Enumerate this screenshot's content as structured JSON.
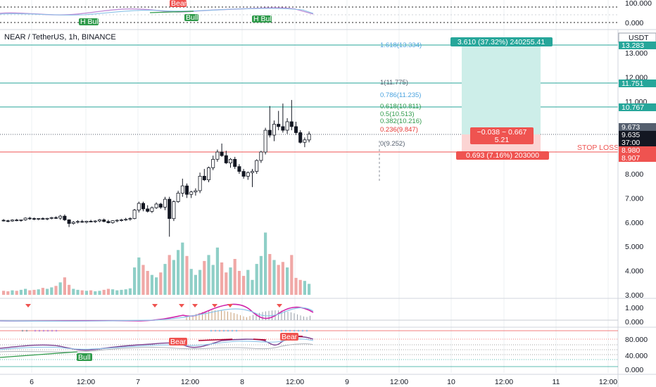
{
  "header": {
    "symbol_line": "NEAR / TetherUS, 1h, BINANCE"
  },
  "colors": {
    "up": "#26a69a",
    "down": "#ef5350",
    "up_vol": "#8fcfc7",
    "down_vol": "#f0a8a6",
    "fib_blue": "#4aa3df",
    "fib_green": "#2e9a4a",
    "fib_red": "#e53935",
    "target_fill": "#cdeee9",
    "stop_fill": "#fbd4d3"
  },
  "price_axis": {
    "currency": "USDT",
    "ticks": [
      "13.000",
      "12.000",
      "11.000",
      "10.000",
      "9.000",
      "8.000",
      "7.000",
      "6.000",
      "5.000",
      "4.000",
      "3.000"
    ],
    "tags": [
      {
        "label": "13.283",
        "color": "#26a69a"
      },
      {
        "label": "11.751",
        "color": "#26a69a"
      },
      {
        "label": "10.767",
        "color": "#26a69a"
      },
      {
        "label": "9.673",
        "color": "#555f6e"
      },
      {
        "label": "9.635",
        "color": "#131722"
      },
      {
        "label": "37:00",
        "color": "#131722"
      },
      {
        "label": "8.980",
        "color": "#ef5350"
      },
      {
        "label": "8.907",
        "color": "#ef5350"
      }
    ]
  },
  "top_panel": {
    "ticks": [
      "100.000",
      "0.000"
    ],
    "badges": [
      "Bear",
      "Bull",
      "H Bull",
      "H Bull"
    ]
  },
  "macd_panel": {
    "ticks": [
      "1.000",
      "0.000"
    ]
  },
  "rsi_panel": {
    "ticks": [
      "80.000",
      "40.000",
      "0.000"
    ],
    "badges": [
      "Bear",
      "Bear",
      "Bull"
    ]
  },
  "time_axis": {
    "labels": [
      "6",
      "12:00",
      "7",
      "12:00",
      "8",
      "12:00",
      "9",
      "12:00",
      "10",
      "12:00",
      "11",
      "12:00"
    ]
  },
  "fib_levels": [
    {
      "label": "1.618(13.334)",
      "color": "#4aa3df"
    },
    {
      "label": "1(11.775)",
      "color": "#555f6e"
    },
    {
      "label": "0.786(11.235)",
      "color": "#4aa3df"
    },
    {
      "label": "0.618(10.811)",
      "color": "#2e9a4a"
    },
    {
      "label": "0.5(10.513)",
      "color": "#2e9a4a"
    },
    {
      "label": "0.382(10.216)",
      "color": "#2e9a4a"
    },
    {
      "label": "0.236(9.847)",
      "color": "#e53935"
    },
    {
      "label": "0(9.252)",
      "color": "#555f6e"
    }
  ],
  "position": {
    "target_label": "3.610 (37.32%) 240255.41",
    "rr_line1": "−0.038 ~ 0.667",
    "rr_line2": "5.21",
    "stop_label": "0.693 (7.16%) 203000",
    "stop_text": "STOP LOSS"
  },
  "chart_data": {
    "type": "candlestick",
    "candles": [
      {
        "o": 6.08,
        "h": 6.13,
        "l": 6.03,
        "c": 6.07
      },
      {
        "o": 6.06,
        "h": 6.1,
        "l": 6.0,
        "c": 6.05
      },
      {
        "o": 6.05,
        "h": 6.12,
        "l": 6.02,
        "c": 6.09
      },
      {
        "o": 6.09,
        "h": 6.14,
        "l": 6.04,
        "c": 6.06
      },
      {
        "o": 6.07,
        "h": 6.11,
        "l": 6.02,
        "c": 6.1
      },
      {
        "o": 6.1,
        "h": 6.2,
        "l": 6.06,
        "c": 6.17
      },
      {
        "o": 6.17,
        "h": 6.22,
        "l": 6.1,
        "c": 6.15
      },
      {
        "o": 6.15,
        "h": 6.19,
        "l": 6.09,
        "c": 6.12
      },
      {
        "o": 6.12,
        "h": 6.17,
        "l": 6.08,
        "c": 6.15
      },
      {
        "o": 6.15,
        "h": 6.2,
        "l": 6.1,
        "c": 6.13
      },
      {
        "o": 6.13,
        "h": 6.18,
        "l": 6.08,
        "c": 6.16
      },
      {
        "o": 6.16,
        "h": 6.22,
        "l": 6.12,
        "c": 6.19
      },
      {
        "o": 6.19,
        "h": 6.24,
        "l": 6.14,
        "c": 6.17
      },
      {
        "o": 6.17,
        "h": 6.3,
        "l": 6.1,
        "c": 6.25
      },
      {
        "o": 6.25,
        "h": 6.32,
        "l": 6.05,
        "c": 6.1
      },
      {
        "o": 6.1,
        "h": 6.12,
        "l": 5.8,
        "c": 5.95
      },
      {
        "o": 5.95,
        "h": 6.05,
        "l": 5.9,
        "c": 6.0
      },
      {
        "o": 6.0,
        "h": 6.08,
        "l": 5.95,
        "c": 6.03
      },
      {
        "o": 6.03,
        "h": 6.1,
        "l": 5.98,
        "c": 6.0
      },
      {
        "o": 6.0,
        "h": 6.06,
        "l": 5.95,
        "c": 6.04
      },
      {
        "o": 6.04,
        "h": 6.1,
        "l": 6.0,
        "c": 6.02
      },
      {
        "o": 6.02,
        "h": 6.08,
        "l": 5.97,
        "c": 6.05
      },
      {
        "o": 6.05,
        "h": 6.13,
        "l": 6.0,
        "c": 6.1
      },
      {
        "o": 6.1,
        "h": 6.15,
        "l": 6.0,
        "c": 6.03
      },
      {
        "o": 6.03,
        "h": 6.1,
        "l": 5.95,
        "c": 5.98
      },
      {
        "o": 5.98,
        "h": 6.08,
        "l": 5.94,
        "c": 6.06
      },
      {
        "o": 6.06,
        "h": 6.12,
        "l": 6.0,
        "c": 6.08
      },
      {
        "o": 6.08,
        "h": 6.14,
        "l": 6.03,
        "c": 6.1
      },
      {
        "o": 6.1,
        "h": 6.18,
        "l": 6.05,
        "c": 6.12
      },
      {
        "o": 6.12,
        "h": 6.2,
        "l": 6.06,
        "c": 6.15
      },
      {
        "o": 6.15,
        "h": 6.55,
        "l": 6.12,
        "c": 6.5
      },
      {
        "o": 6.5,
        "h": 6.85,
        "l": 6.4,
        "c": 6.78
      },
      {
        "o": 6.78,
        "h": 6.85,
        "l": 6.45,
        "c": 6.55
      },
      {
        "o": 6.55,
        "h": 6.7,
        "l": 6.4,
        "c": 6.45
      },
      {
        "o": 6.45,
        "h": 6.65,
        "l": 6.38,
        "c": 6.6
      },
      {
        "o": 6.6,
        "h": 6.82,
        "l": 6.55,
        "c": 6.75
      },
      {
        "o": 6.75,
        "h": 6.8,
        "l": 6.55,
        "c": 6.62
      },
      {
        "o": 6.62,
        "h": 7.05,
        "l": 6.5,
        "c": 6.95
      },
      {
        "o": 6.95,
        "h": 7.05,
        "l": 5.4,
        "c": 6.15
      },
      {
        "o": 6.15,
        "h": 6.9,
        "l": 6.05,
        "c": 6.85
      },
      {
        "o": 6.85,
        "h": 7.3,
        "l": 6.8,
        "c": 7.2
      },
      {
        "o": 7.2,
        "h": 7.8,
        "l": 7.05,
        "c": 7.5
      },
      {
        "o": 7.5,
        "h": 7.6,
        "l": 7.0,
        "c": 7.15
      },
      {
        "o": 7.15,
        "h": 7.3,
        "l": 7.0,
        "c": 7.25
      },
      {
        "o": 7.25,
        "h": 7.4,
        "l": 7.1,
        "c": 7.3
      },
      {
        "o": 7.3,
        "h": 8.05,
        "l": 7.2,
        "c": 7.9
      },
      {
        "o": 7.9,
        "h": 8.2,
        "l": 7.7,
        "c": 7.75
      },
      {
        "o": 7.75,
        "h": 8.3,
        "l": 7.65,
        "c": 8.25
      },
      {
        "o": 8.25,
        "h": 8.75,
        "l": 8.15,
        "c": 8.6
      },
      {
        "o": 8.6,
        "h": 9.0,
        "l": 8.5,
        "c": 8.9
      },
      {
        "o": 8.9,
        "h": 9.25,
        "l": 8.7,
        "c": 8.75
      },
      {
        "o": 8.75,
        "h": 8.95,
        "l": 8.4,
        "c": 8.45
      },
      {
        "o": 8.45,
        "h": 8.65,
        "l": 8.25,
        "c": 8.6
      },
      {
        "o": 8.6,
        "h": 8.7,
        "l": 8.2,
        "c": 8.3
      },
      {
        "o": 8.3,
        "h": 8.4,
        "l": 8.0,
        "c": 8.1
      },
      {
        "o": 8.1,
        "h": 8.2,
        "l": 7.8,
        "c": 7.9
      },
      {
        "o": 7.9,
        "h": 8.1,
        "l": 7.75,
        "c": 8.05
      },
      {
        "o": 8.05,
        "h": 8.2,
        "l": 7.45,
        "c": 8.1
      },
      {
        "o": 8.1,
        "h": 8.6,
        "l": 8.0,
        "c": 8.55
      },
      {
        "o": 8.55,
        "h": 8.95,
        "l": 8.45,
        "c": 8.9
      },
      {
        "o": 8.9,
        "h": 9.9,
        "l": 8.8,
        "c": 9.8
      },
      {
        "o": 9.8,
        "h": 10.8,
        "l": 9.5,
        "c": 9.6
      },
      {
        "o": 9.6,
        "h": 10.2,
        "l": 9.35,
        "c": 10.05
      },
      {
        "o": 10.05,
        "h": 10.6,
        "l": 9.8,
        "c": 9.95
      },
      {
        "o": 9.95,
        "h": 10.9,
        "l": 9.7,
        "c": 9.8
      },
      {
        "o": 9.8,
        "h": 10.3,
        "l": 9.65,
        "c": 10.15
      },
      {
        "o": 10.15,
        "h": 11.05,
        "l": 9.8,
        "c": 9.95
      },
      {
        "o": 9.95,
        "h": 10.15,
        "l": 9.6,
        "c": 9.7
      },
      {
        "o": 9.7,
        "h": 9.8,
        "l": 9.25,
        "c": 9.3
      },
      {
        "o": 9.3,
        "h": 9.5,
        "l": 9.1,
        "c": 9.4
      },
      {
        "o": 9.4,
        "h": 9.75,
        "l": 9.3,
        "c": 9.64
      }
    ],
    "volume": [
      0.08,
      0.07,
      0.09,
      0.08,
      0.1,
      0.12,
      0.09,
      0.1,
      0.11,
      0.14,
      0.12,
      0.15,
      0.18,
      0.25,
      0.35,
      0.2,
      0.12,
      0.1,
      0.09,
      0.08,
      0.09,
      0.07,
      0.08,
      0.1,
      0.12,
      0.11,
      0.09,
      0.1,
      0.11,
      0.13,
      0.55,
      0.75,
      0.6,
      0.48,
      0.4,
      0.35,
      0.45,
      0.62,
      0.8,
      0.7,
      0.9,
      1.05,
      0.78,
      0.52,
      0.4,
      0.5,
      0.68,
      0.8,
      0.6,
      0.95,
      0.65,
      0.45,
      0.55,
      0.72,
      0.48,
      0.38,
      0.5,
      0.3,
      0.62,
      0.78,
      1.25,
      0.82,
      0.7,
      0.6,
      0.66,
      0.55,
      0.8,
      0.34,
      0.3,
      0.28,
      0.22
    ]
  }
}
